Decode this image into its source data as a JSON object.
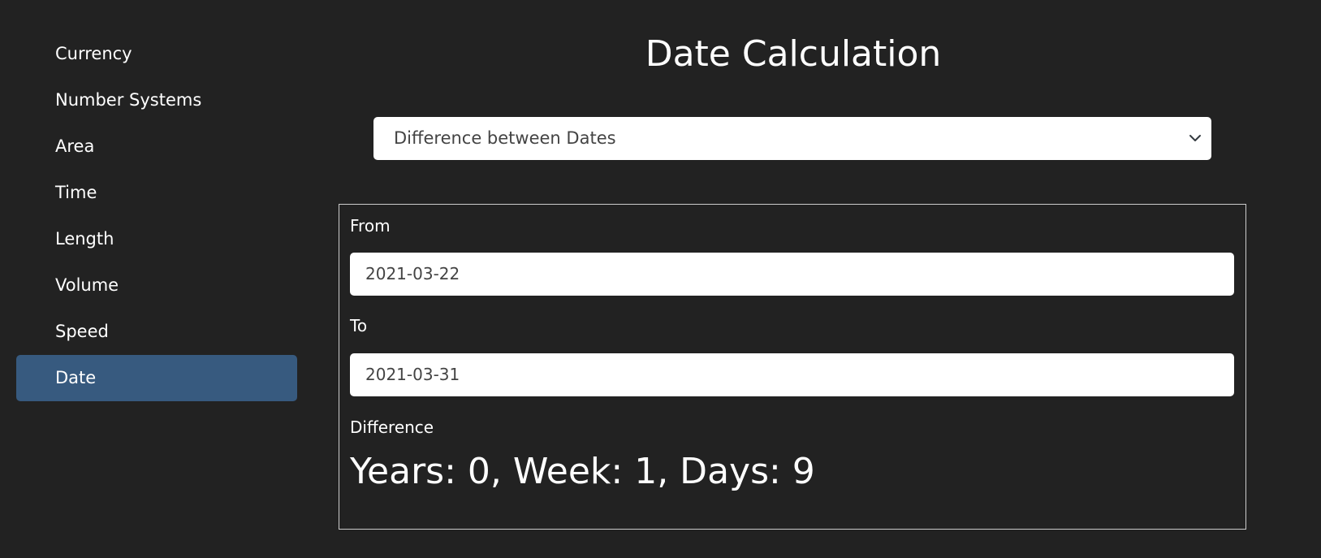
{
  "sidebar": {
    "items": [
      {
        "label": "Currency",
        "active": false
      },
      {
        "label": "Number Systems",
        "active": false
      },
      {
        "label": "Area",
        "active": false
      },
      {
        "label": "Time",
        "active": false
      },
      {
        "label": "Length",
        "active": false
      },
      {
        "label": "Volume",
        "active": false
      },
      {
        "label": "Speed",
        "active": false
      },
      {
        "label": "Date",
        "active": true
      }
    ]
  },
  "main": {
    "title": "Date Calculation",
    "mode_select": {
      "selected": "Difference between Dates",
      "icon": "chevron-down-icon"
    },
    "from": {
      "label": "From",
      "value": "2021-03-22"
    },
    "to": {
      "label": "To",
      "value": "2021-03-31"
    },
    "difference": {
      "label": "Difference",
      "value": "Years: 0, Week: 1, Days: 9"
    }
  },
  "colors": {
    "background": "#222222",
    "accent": "#375a7f",
    "panel_border": "#cccccc",
    "input_text": "#444444"
  }
}
